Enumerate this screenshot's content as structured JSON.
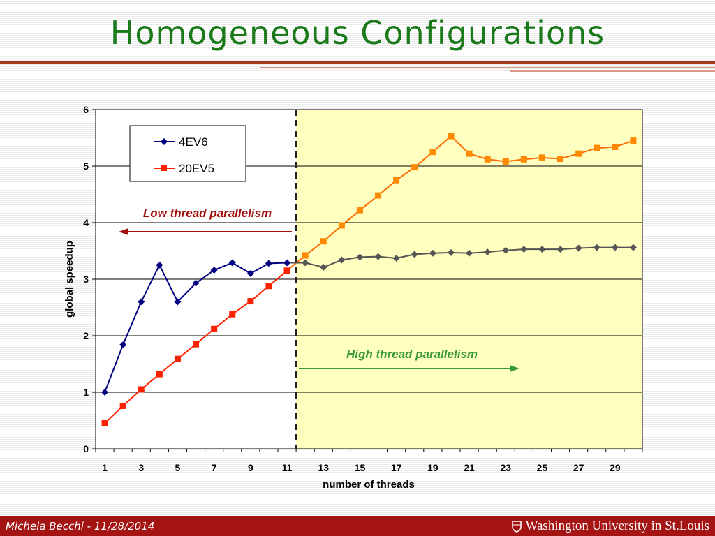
{
  "slide": {
    "title": "Homogeneous Configurations",
    "footer_author": "Michela Becchi - 11/28/2014",
    "footer_logo": "Washington University in St.Louis"
  },
  "colors": {
    "title": "#1a7a1a",
    "title_rule": "#a23a1a",
    "footer_bg": "#a31412",
    "series_4ev6_before": "#000080",
    "series_4ev6_after": "#555555",
    "series_20ev5": "#ff2000",
    "series_20ev5_after_line": "#ff6a00",
    "series_20ev5_after_marker": "#ff8a00",
    "highlight_region": "#ffffc0",
    "low_annotation": "#a01010",
    "high_annotation": "#3a9a3a"
  },
  "chart_data": {
    "type": "line",
    "x": [
      1,
      2,
      3,
      4,
      5,
      6,
      7,
      8,
      9,
      10,
      11,
      12,
      13,
      14,
      15,
      16,
      17,
      18,
      19,
      20,
      21,
      22,
      23,
      24,
      25,
      26,
      27,
      28,
      29,
      30
    ],
    "xticks": [
      1,
      3,
      5,
      7,
      9,
      11,
      13,
      15,
      17,
      19,
      21,
      23,
      25,
      27,
      29
    ],
    "xlabel": "number of threads",
    "ylabel": "global speedup",
    "ylim": [
      0,
      6
    ],
    "yticks": [
      0,
      1,
      2,
      3,
      4,
      5,
      6
    ],
    "grid": "horizontal",
    "legend_position": "top-left",
    "series": [
      {
        "name": "4EV6",
        "marker": "diamond",
        "values": [
          1.0,
          1.84,
          2.6,
          3.25,
          2.6,
          2.93,
          3.16,
          3.29,
          3.1,
          3.28,
          3.29,
          3.29,
          3.21,
          3.34,
          3.39,
          3.4,
          3.37,
          3.44,
          3.46,
          3.47,
          3.46,
          3.48,
          3.51,
          3.53,
          3.53,
          3.53,
          3.55,
          3.56,
          3.56,
          3.56
        ]
      },
      {
        "name": "20EV5",
        "marker": "square",
        "values": [
          0.45,
          0.76,
          1.05,
          1.32,
          1.59,
          1.85,
          2.12,
          2.38,
          2.61,
          2.88,
          3.15,
          3.42,
          3.67,
          3.95,
          4.22,
          4.48,
          4.75,
          4.98,
          5.25,
          5.53,
          5.22,
          5.12,
          5.08,
          5.12,
          5.15,
          5.13,
          5.22,
          5.32,
          5.34,
          5.45
        ]
      }
    ],
    "divider_x": 11.5,
    "annotations": {
      "low": "Low thread parallelism",
      "high": "High thread parallelism"
    }
  }
}
